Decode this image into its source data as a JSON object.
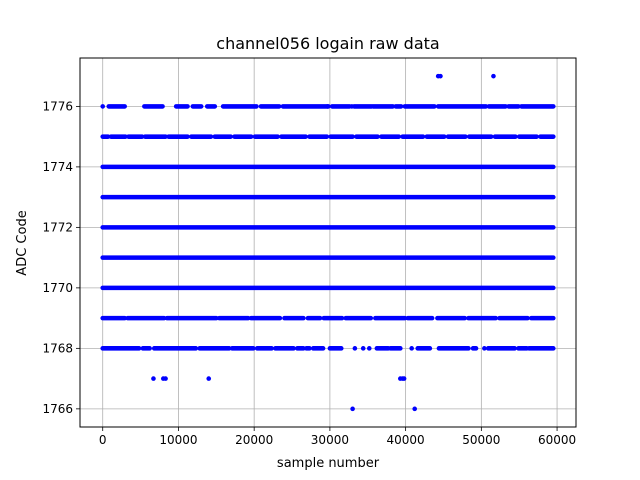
{
  "chart_data": {
    "type": "scatter",
    "title": "channel056 logain raw data",
    "xlabel": "sample number",
    "ylabel": "ADC Code",
    "xlim": [
      -3000,
      62500
    ],
    "ylim": [
      1765.4,
      1777.6
    ],
    "xticks": [
      0,
      10000,
      20000,
      30000,
      40000,
      50000,
      60000
    ],
    "yticks": [
      1766,
      1768,
      1770,
      1772,
      1774,
      1776
    ],
    "grid": true,
    "marker_color": "#0000ff",
    "x_range": [
      0,
      59500
    ],
    "dense_levels": [
      1770,
      1771,
      1772,
      1773,
      1774
    ],
    "sparse_levels": [
      {
        "y": 1775,
        "x_segments": [
          [
            0,
            700
          ],
          [
            1100,
            3000
          ],
          [
            3400,
            5200
          ],
          [
            5600,
            8300
          ],
          [
            8700,
            11200
          ],
          [
            11700,
            14300
          ],
          [
            14800,
            16900
          ],
          [
            17400,
            19600
          ],
          [
            20100,
            23100
          ],
          [
            23600,
            26800
          ],
          [
            27300,
            29600
          ],
          [
            30100,
            33000
          ],
          [
            33500,
            36300
          ],
          [
            36800,
            39100
          ],
          [
            39600,
            42300
          ],
          [
            42800,
            45100
          ],
          [
            45600,
            47900
          ],
          [
            48400,
            51300
          ],
          [
            51800,
            54500
          ],
          [
            55000,
            57300
          ],
          [
            57800,
            59500
          ]
        ]
      },
      {
        "y": 1776,
        "x_segments": [
          [
            0,
            0
          ],
          [
            800,
            2900
          ],
          [
            5500,
            7900
          ],
          [
            9700,
            11200
          ],
          [
            11900,
            13000
          ],
          [
            13800,
            14800
          ],
          [
            15900,
            20300
          ],
          [
            20900,
            23300
          ],
          [
            23800,
            29800
          ],
          [
            30300,
            32600
          ],
          [
            33200,
            35500
          ],
          [
            35700,
            38300
          ],
          [
            38700,
            39400
          ],
          [
            39900,
            43800
          ],
          [
            44300,
            50600
          ],
          [
            51000,
            53200
          ],
          [
            53600,
            54900
          ],
          [
            55300,
            59500
          ]
        ]
      },
      {
        "y": 1769,
        "x_segments": [
          [
            0,
            2900
          ],
          [
            3300,
            8100
          ],
          [
            8500,
            15000
          ],
          [
            15400,
            19200
          ],
          [
            19600,
            23400
          ],
          [
            24000,
            26500
          ],
          [
            27100,
            28700
          ],
          [
            29200,
            31600
          ],
          [
            32100,
            35400
          ],
          [
            36000,
            39900
          ],
          [
            40300,
            43500
          ],
          [
            44200,
            47800
          ],
          [
            48300,
            51900
          ],
          [
            52400,
            56100
          ],
          [
            56600,
            59500
          ]
        ]
      },
      {
        "y": 1768,
        "x_segments": [
          [
            0,
            4800
          ],
          [
            5300,
            6200
          ],
          [
            6800,
            12300
          ],
          [
            12800,
            16700
          ],
          [
            17100,
            19900
          ],
          [
            20400,
            22300
          ],
          [
            22800,
            25200
          ],
          [
            25700,
            26500
          ],
          [
            26900,
            27300
          ],
          [
            27800,
            29100
          ],
          [
            30000,
            31500
          ],
          [
            36200,
            37700
          ],
          [
            38000,
            39300
          ],
          [
            41600,
            43200
          ],
          [
            44400,
            48300
          ],
          [
            48900,
            49300
          ],
          [
            50900,
            54400
          ],
          [
            54900,
            56000
          ],
          [
            56300,
            59500
          ]
        ]
      }
    ],
    "outliers": [
      {
        "x": 44300,
        "y": 1777
      },
      {
        "x": 44600,
        "y": 1777
      },
      {
        "x": 51600,
        "y": 1777
      },
      {
        "x": 6700,
        "y": 1767
      },
      {
        "x": 8000,
        "y": 1767
      },
      {
        "x": 8300,
        "y": 1767
      },
      {
        "x": 14000,
        "y": 1767
      },
      {
        "x": 39300,
        "y": 1767
      },
      {
        "x": 39600,
        "y": 1767
      },
      {
        "x": 39800,
        "y": 1767
      },
      {
        "x": 33000,
        "y": 1766
      },
      {
        "x": 41200,
        "y": 1766
      },
      {
        "x": 29700,
        "y": 1776
      },
      {
        "x": 32900,
        "y": 1776
      },
      {
        "x": 33300,
        "y": 1768
      },
      {
        "x": 34400,
        "y": 1768
      },
      {
        "x": 35200,
        "y": 1768
      },
      {
        "x": 40800,
        "y": 1768
      },
      {
        "x": 50400,
        "y": 1768
      }
    ]
  }
}
